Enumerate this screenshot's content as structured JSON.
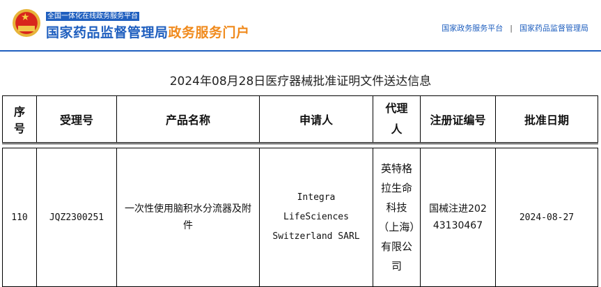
{
  "header": {
    "tagline": "全国一体化在线政务服务平台",
    "brand_main": "国家药品监督管理局",
    "brand_accent": "政务服务门户",
    "links": [
      "国家政务服务平台",
      "国家药品监督管理局"
    ],
    "separator": "|"
  },
  "title": "2024年08月28日医疗器械批准证明文件送达信息",
  "table": {
    "headers": [
      "序号",
      "受理号",
      "产品名称",
      "申请人",
      "代理人",
      "注册证编号",
      "批准日期"
    ],
    "rows": [
      [
        "110",
        "JQZ2300251",
        "一次性使用脑积水分流器及附件",
        "Integra LifeSciences Switzerland SARL",
        "英特格拉生命科技（上海）有限公司",
        "国械注进20243130467",
        "2024-08-27"
      ]
    ]
  },
  "colors": {
    "brand_blue": "#1f5fbf",
    "brand_orange": "#f08a1c"
  }
}
